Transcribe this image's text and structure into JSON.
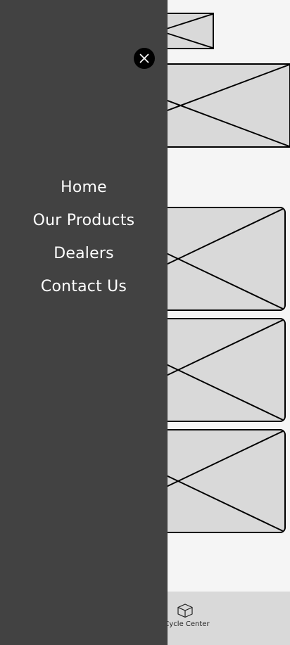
{
  "drawer": {
    "close_icon": "close-icon",
    "menu": [
      {
        "label": "Home"
      },
      {
        "label": "Our Products"
      },
      {
        "label": "Dealers"
      },
      {
        "label": "Contact Us"
      }
    ]
  },
  "bottom_nav": {
    "item_label": "l Cycle Center",
    "item_icon": "box-icon"
  },
  "colors": {
    "drawer_background": "#424242",
    "page_background": "#f5f5f5",
    "placeholder_fill": "#d9d9d9",
    "bottom_bar": "#d9d9d9"
  }
}
